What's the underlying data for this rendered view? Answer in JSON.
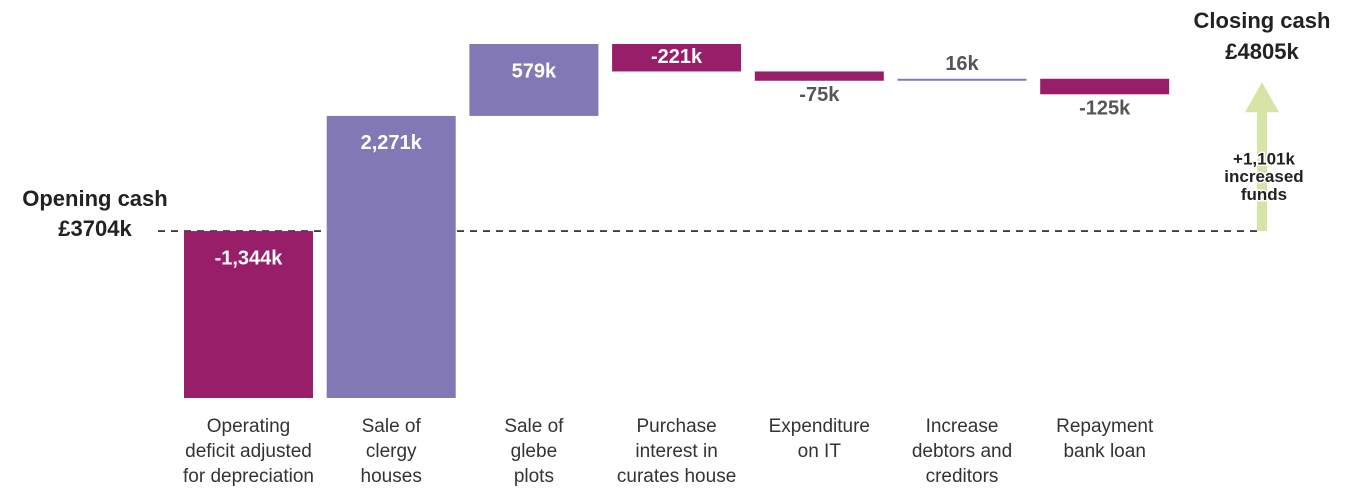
{
  "chart_data": {
    "type": "waterfall",
    "opening": {
      "label": "Opening cash",
      "value": 3704,
      "value_label": "£3704k"
    },
    "closing": {
      "label": "Closing cash",
      "value": 4805,
      "value_label": "£4805k"
    },
    "change": {
      "value": 1101,
      "value_label": "+1,101k",
      "label": "increased\nfunds",
      "color": "#d6e4a8"
    },
    "categories": [
      "Operating\ndeficit adjusted\nfor depreciation",
      "Sale of\nclergy\nhouses",
      "Sale of\nglebe\nplots",
      "Purchase\ninterest in\ncurates house",
      "Expenditure\non IT",
      "Increase\ndebtors and\ncreditors",
      "Repayment\nbank loan"
    ],
    "values": [
      -1344,
      2271,
      579,
      -221,
      -75,
      16,
      -125
    ],
    "value_labels": [
      "-1,344k",
      "2,271k",
      "579k",
      "-221k",
      "-75k",
      "16k",
      "-125k"
    ],
    "colors": {
      "increase": "#8378b6",
      "decrease": "#981e6a"
    }
  }
}
